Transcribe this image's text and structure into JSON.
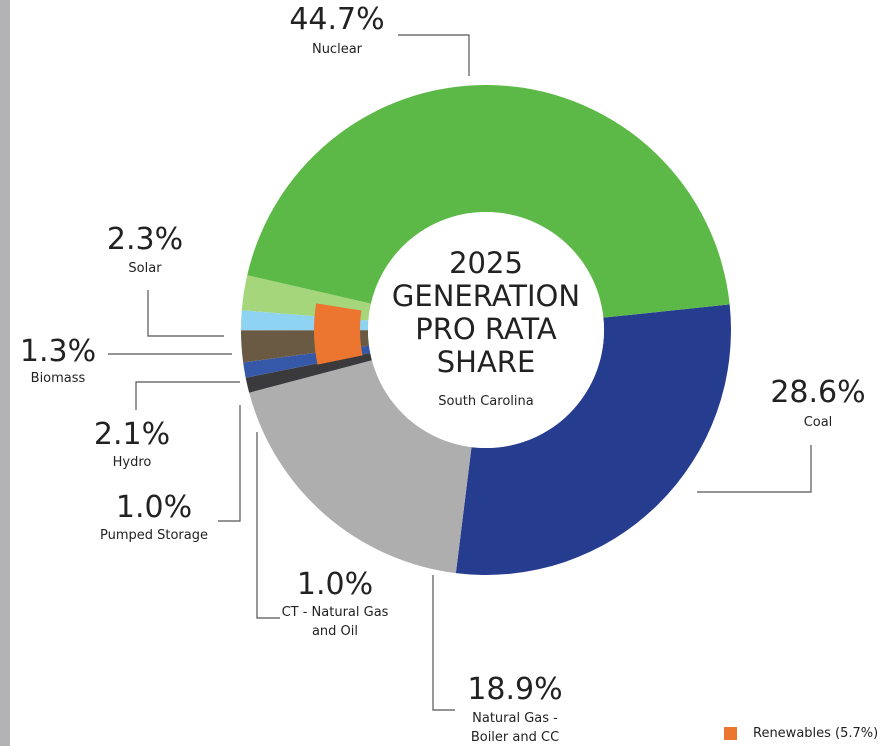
{
  "chart_data": {
    "type": "donut",
    "title_lines": [
      "2025",
      "GENERATION",
      "PRO RATA",
      "SHARE"
    ],
    "subtitle": "South Carolina",
    "categories": [
      "Coal",
      "Natural Gas - Boiler and CC",
      "CT - Natural Gas and Oil",
      "Pumped Storage",
      "Hydro",
      "Biomass",
      "Solar",
      "Nuclear"
    ],
    "values": [
      28.6,
      18.9,
      1.0,
      1.0,
      2.1,
      1.3,
      2.3,
      44.7
    ],
    "value_labels": [
      "28.6%",
      "18.9%",
      "1.0%",
      "1.0%",
      "2.1%",
      "1.3%",
      "2.3%",
      "44.7%"
    ],
    "colors": [
      "#253c8f",
      "#aeaeae",
      "#3a3a3c",
      "#3559a8",
      "#6b5a43",
      "#8fd3f2",
      "#a5d67c",
      "#5cb947"
    ],
    "inner": {
      "name": "Renewables (5.7%)",
      "value": 5.7,
      "color": "#ec7630"
    }
  }
}
